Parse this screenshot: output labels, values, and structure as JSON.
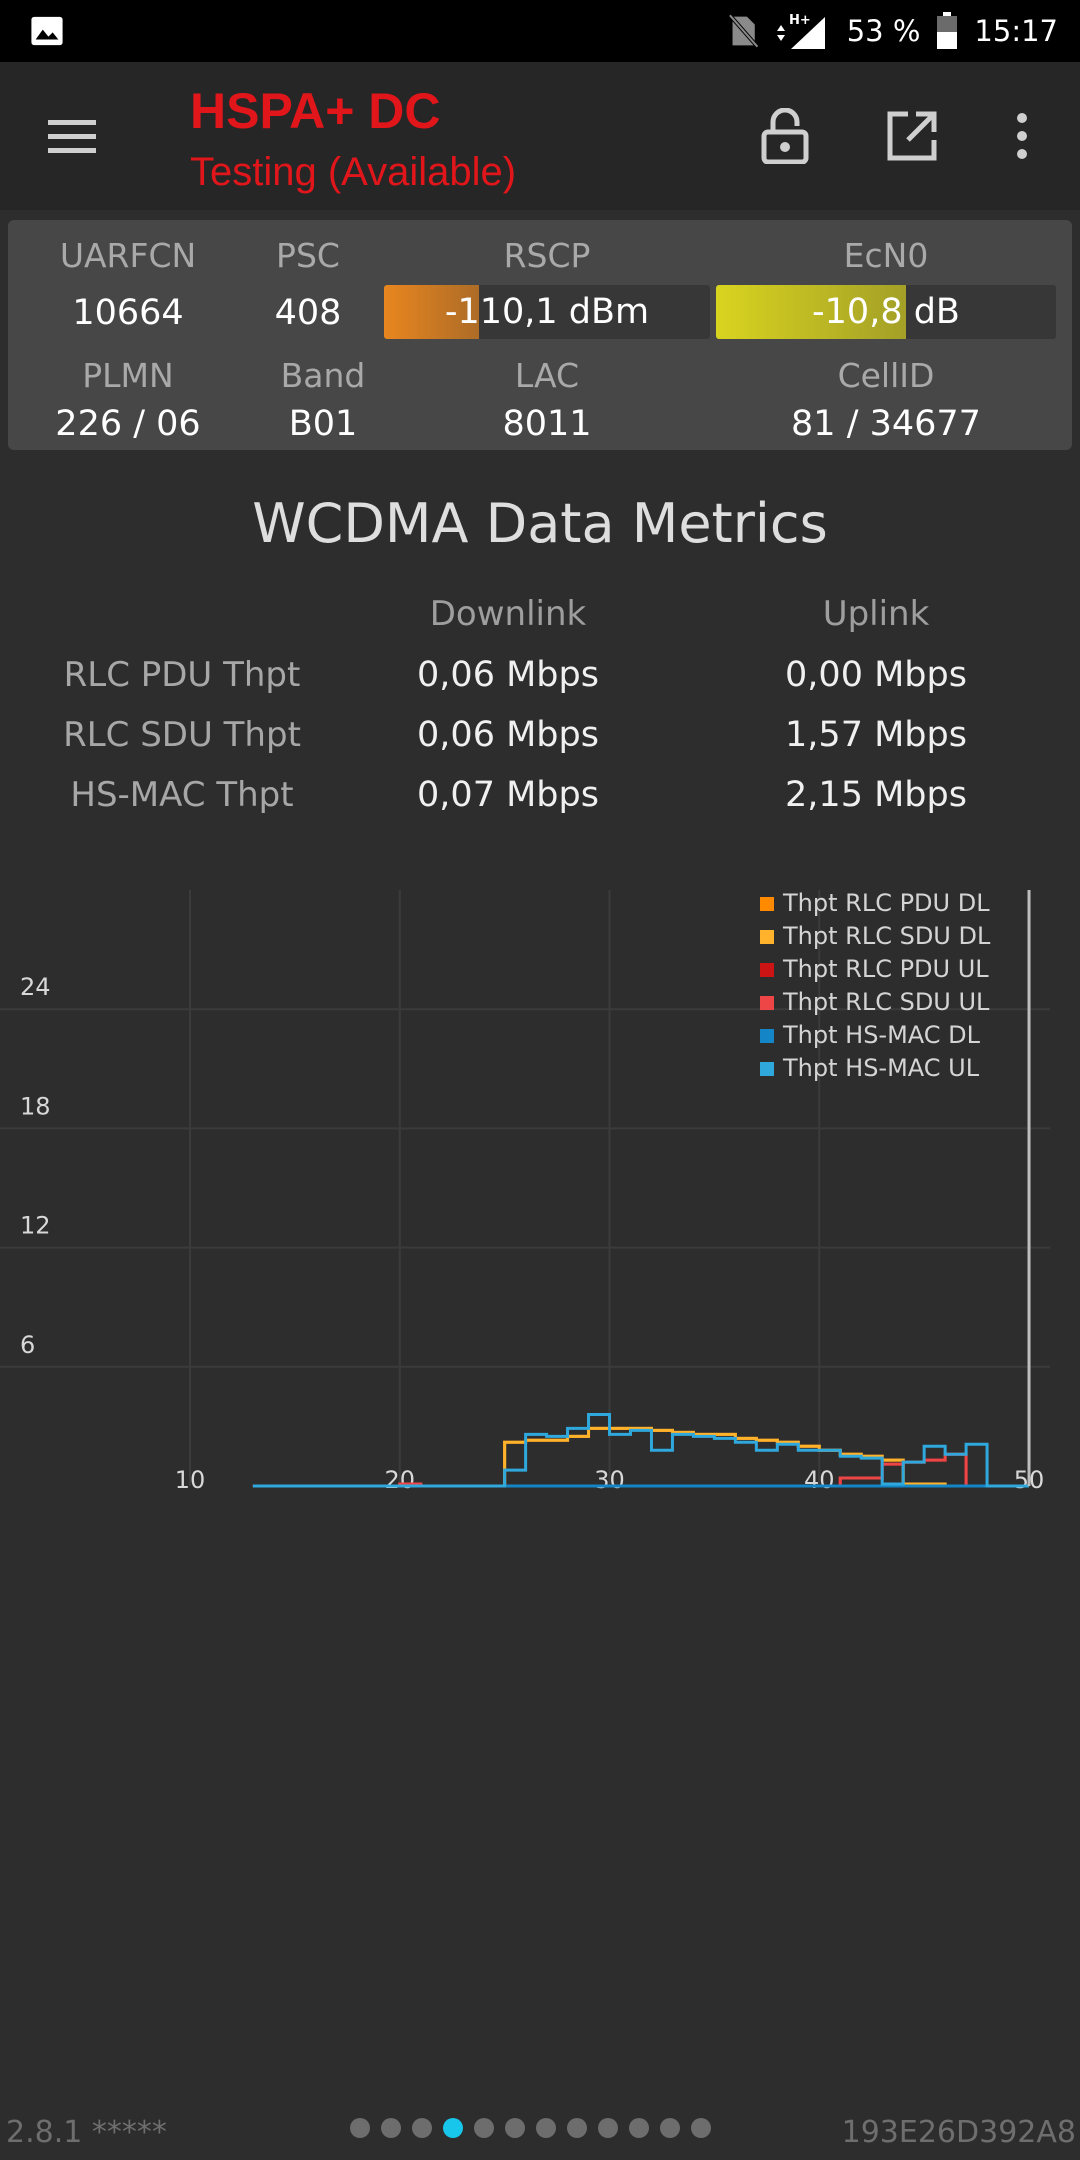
{
  "status_bar": {
    "battery": "53 %",
    "time": "15:17",
    "network_type": "H+",
    "icons": [
      "gallery-icon",
      "no-sim-icon",
      "signal-icon",
      "battery-icon"
    ]
  },
  "app_bar": {
    "title": "HSPA+ DC",
    "subtitle": "Testing (Available)",
    "icons": [
      "menu-icon",
      "lock-open-icon",
      "open-external-icon",
      "more-vert-icon"
    ]
  },
  "cell_info": {
    "uarfcn": {
      "label": "UARFCN",
      "value": "10664"
    },
    "psc": {
      "label": "PSC",
      "value": "408"
    },
    "rscp": {
      "label": "RSCP",
      "value": "-110,1 dBm",
      "level": 0.29,
      "color": "#e8861f"
    },
    "ecn0": {
      "label": "EcN0",
      "value": "-10,8 dB",
      "level": 0.56,
      "color": "#d9d41f"
    },
    "plmn": {
      "label": "PLMN",
      "value": "226 / 06"
    },
    "band": {
      "label": "Band",
      "value": "B01"
    },
    "lac": {
      "label": "LAC",
      "value": "8011"
    },
    "cellid": {
      "label": "CellID",
      "value": "81 / 34677"
    }
  },
  "metrics": {
    "title": "WCDMA Data Metrics",
    "headers": {
      "downlink": "Downlink",
      "uplink": "Uplink"
    },
    "rows": [
      {
        "label": "RLC PDU Thpt",
        "downlink": "0,06 Mbps",
        "uplink": "0,00 Mbps"
      },
      {
        "label": "RLC SDU Thpt",
        "downlink": "0,06 Mbps",
        "uplink": "1,57 Mbps"
      },
      {
        "label": "HS-MAC Thpt",
        "downlink": "0,07 Mbps",
        "uplink": "2,15 Mbps"
      }
    ]
  },
  "chart_data": {
    "type": "line",
    "title": "",
    "xlabel": "",
    "ylabel": "",
    "xlim": [
      10,
      51
    ],
    "ylim": [
      0,
      30
    ],
    "x_ticks": [
      10,
      20,
      30,
      40,
      50
    ],
    "y_ticks": [
      6,
      12,
      18,
      24
    ],
    "grid": true,
    "legend_position": "top-right",
    "step": true,
    "series": [
      {
        "name": "Thpt RLC PDU DL",
        "color": "#ff8a00",
        "x": [
          13,
          14,
          15,
          16,
          17,
          18,
          19,
          20,
          21,
          22,
          23,
          24,
          25,
          26,
          27,
          28,
          29,
          30,
          31,
          32,
          33,
          34,
          35,
          36,
          37,
          38,
          39,
          40,
          41,
          42,
          43,
          44,
          45,
          46,
          47,
          48,
          49,
          50
        ],
        "y": [
          0,
          0,
          0,
          0,
          0,
          0,
          0,
          0.05,
          0,
          0,
          0,
          0,
          2.2,
          2.3,
          2.3,
          2.5,
          2.9,
          2.9,
          2.9,
          2.8,
          2.7,
          2.6,
          2.6,
          2.4,
          2.3,
          2.2,
          2.0,
          1.8,
          1.6,
          1.5,
          1.3,
          0.1,
          0.1,
          0,
          0,
          0,
          0,
          0
        ]
      },
      {
        "name": "Thpt RLC SDU DL",
        "color": "#ffb22b",
        "x": [
          13,
          14,
          15,
          16,
          17,
          18,
          19,
          20,
          21,
          22,
          23,
          24,
          25,
          26,
          27,
          28,
          29,
          30,
          31,
          32,
          33,
          34,
          35,
          36,
          37,
          38,
          39,
          40,
          41,
          42,
          43,
          44,
          45,
          46,
          47,
          48,
          49,
          50
        ],
        "y": [
          0,
          0,
          0,
          0,
          0,
          0,
          0,
          0.05,
          0,
          0,
          0,
          0,
          2.2,
          2.3,
          2.3,
          2.5,
          2.9,
          2.9,
          2.9,
          2.8,
          2.7,
          2.6,
          2.6,
          2.4,
          2.3,
          2.2,
          2.0,
          1.8,
          1.6,
          1.5,
          1.3,
          0.1,
          0.1,
          0,
          0,
          0,
          0,
          0
        ]
      },
      {
        "name": "Thpt RLC PDU UL",
        "color": "#cc1414",
        "x": [
          13,
          14,
          15,
          16,
          17,
          18,
          19,
          20,
          21,
          22,
          23,
          24,
          25,
          26,
          27,
          28,
          29,
          30,
          31,
          32,
          33,
          34,
          35,
          36,
          37,
          38,
          39,
          40,
          41,
          42,
          43,
          44,
          45,
          46,
          47,
          48,
          49,
          50
        ],
        "y": [
          0,
          0,
          0,
          0,
          0,
          0,
          0,
          0.1,
          0,
          0,
          0,
          0,
          0,
          0,
          0,
          0,
          0,
          0,
          0,
          0,
          0,
          0,
          0,
          0,
          0,
          0,
          0,
          0,
          0.4,
          0.4,
          1.1,
          1.2,
          1.3,
          1.6,
          0,
          0,
          0,
          0
        ]
      },
      {
        "name": "Thpt RLC SDU UL",
        "color": "#ee4646",
        "x": [
          13,
          14,
          15,
          16,
          17,
          18,
          19,
          20,
          21,
          22,
          23,
          24,
          25,
          26,
          27,
          28,
          29,
          30,
          31,
          32,
          33,
          34,
          35,
          36,
          37,
          38,
          39,
          40,
          41,
          42,
          43,
          44,
          45,
          46,
          47,
          48,
          49,
          50
        ],
        "y": [
          0,
          0,
          0,
          0,
          0,
          0,
          0,
          0.1,
          0,
          0,
          0,
          0,
          0,
          0,
          0,
          0,
          0,
          0,
          0,
          0,
          0,
          0,
          0,
          0,
          0,
          0,
          0,
          0,
          0.4,
          0.4,
          1.1,
          1.2,
          1.3,
          1.6,
          0,
          0,
          0,
          0
        ]
      },
      {
        "name": "Thpt HS-MAC DL",
        "color": "#1486c8",
        "x": [
          13,
          14,
          15,
          16,
          17,
          18,
          19,
          20,
          21,
          22,
          23,
          24,
          25,
          26,
          27,
          28,
          29,
          30,
          31,
          32,
          33,
          34,
          35,
          36,
          37,
          38,
          39,
          40,
          41,
          42,
          43,
          44,
          45,
          46,
          47,
          48,
          49,
          50
        ],
        "y": [
          0,
          0,
          0,
          0,
          0,
          0,
          0,
          0,
          0,
          0,
          0,
          0,
          0,
          0,
          0,
          0,
          0,
          0,
          0,
          0,
          0,
          0,
          0,
          0,
          0,
          0,
          0,
          0,
          0,
          0,
          0,
          0,
          0,
          0,
          0,
          0,
          0,
          0
        ]
      },
      {
        "name": "Thpt HS-MAC UL",
        "color": "#2fa8dd",
        "x": [
          13,
          14,
          15,
          16,
          17,
          18,
          19,
          20,
          21,
          22,
          23,
          24,
          25,
          26,
          27,
          28,
          29,
          30,
          31,
          32,
          33,
          34,
          35,
          36,
          37,
          38,
          39,
          40,
          41,
          42,
          43,
          44,
          45,
          46,
          47,
          48,
          49,
          50
        ],
        "y": [
          0,
          0,
          0,
          0,
          0,
          0,
          0,
          0,
          0,
          0,
          0,
          0,
          0.8,
          2.6,
          2.5,
          2.9,
          3.6,
          2.6,
          2.8,
          1.8,
          2.6,
          2.5,
          2.4,
          2.2,
          1.8,
          2.1,
          1.8,
          1.8,
          1.5,
          1.4,
          0.1,
          1.2,
          2.0,
          1.6,
          2.1,
          0,
          0,
          0
        ]
      }
    ]
  },
  "footer": {
    "version": "2.8.1 *****",
    "device_id": "193E26D392A8",
    "page_count": 12,
    "active_page": 4
  }
}
